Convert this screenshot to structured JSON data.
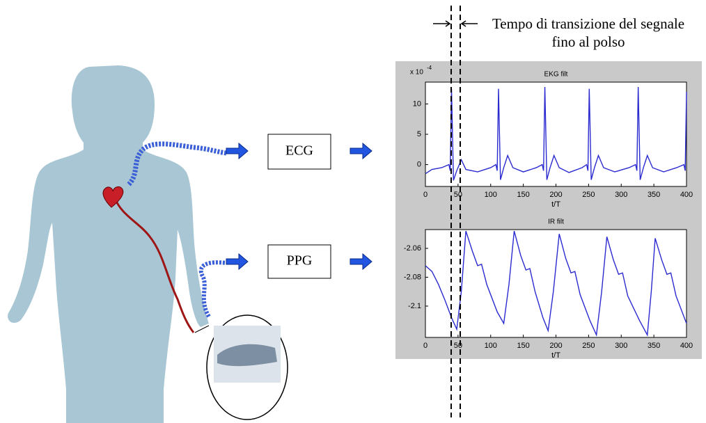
{
  "annotation": [
    "Tempo di transizione del segnale",
    "fino al polso"
  ],
  "boxes": [
    "ECG",
    "PPG"
  ],
  "chart_data": [
    {
      "type": "line",
      "title": "EKG filt",
      "xlabel": "t/T",
      "y_scale_label": "x 10",
      "y_scale_exponent": "-4",
      "color": "#2a2ad0",
      "x": [
        0,
        10,
        25,
        36,
        38,
        40,
        43,
        48,
        55,
        62,
        80,
        100,
        108,
        110,
        112,
        115,
        120,
        126,
        134,
        150,
        170,
        179,
        181,
        183,
        186,
        191,
        197,
        205,
        220,
        240,
        247,
        249,
        251,
        254,
        259,
        265,
        273,
        290,
        312,
        322,
        324,
        326,
        329,
        334,
        340,
        348,
        365,
        385,
        396,
        398,
        400
      ],
      "values": [
        -1.5,
        -0.8,
        -0.5,
        0,
        -1,
        12.5,
        -2.6,
        -1,
        0.8,
        -0.8,
        -1.2,
        -0.5,
        0,
        -1,
        12.5,
        -2.5,
        -0.5,
        1.5,
        -0.5,
        -1.2,
        -0.5,
        0,
        -1,
        12.8,
        -2.5,
        -0.5,
        1.5,
        -0.5,
        -1.3,
        -0.5,
        0,
        -1,
        12.5,
        -2.5,
        -0.5,
        1.5,
        -0.5,
        -1.2,
        -0.5,
        0,
        -1,
        12.8,
        -2.5,
        -0.5,
        1.5,
        -0.5,
        -1.2,
        -0.5,
        0,
        -1,
        12
      ],
      "xlim": [
        0,
        400
      ],
      "xticks": [
        0,
        50,
        100,
        150,
        200,
        250,
        300,
        350,
        400
      ],
      "ylim": [
        -3.6,
        13.6
      ],
      "yticks": [
        0,
        5,
        10
      ]
    },
    {
      "type": "line",
      "title": "IR filt",
      "xlabel": "t/T",
      "color": "#2a2ad0",
      "x": [
        0,
        10,
        20,
        30,
        40,
        48,
        55,
        62,
        72,
        80,
        86,
        94,
        110,
        120,
        128,
        136,
        146,
        154,
        160,
        168,
        180,
        188,
        196,
        205,
        215,
        223,
        229,
        237,
        252,
        262,
        270,
        278,
        288,
        296,
        302,
        310,
        328,
        340,
        346,
        352,
        362,
        370,
        376,
        384,
        400
      ],
      "values": [
        -2.072,
        -2.076,
        -2.085,
        -2.096,
        -2.108,
        -2.116,
        -2.09,
        -2.048,
        -2.062,
        -2.072,
        -2.071,
        -2.085,
        -2.104,
        -2.112,
        -2.085,
        -2.048,
        -2.065,
        -2.075,
        -2.074,
        -2.09,
        -2.108,
        -2.117,
        -2.09,
        -2.05,
        -2.067,
        -2.077,
        -2.076,
        -2.092,
        -2.11,
        -2.12,
        -2.09,
        -2.052,
        -2.068,
        -2.078,
        -2.077,
        -2.093,
        -2.11,
        -2.12,
        -2.09,
        -2.053,
        -2.068,
        -2.078,
        -2.077,
        -2.093,
        -2.112
      ],
      "xlim": [
        0,
        400
      ],
      "xticks": [
        0,
        50,
        100,
        150,
        200,
        250,
        300,
        350,
        400
      ],
      "ylim": [
        -2.1217,
        -2.047
      ],
      "yticks": [
        -2.06,
        -2.08,
        -2.1
      ]
    }
  ]
}
